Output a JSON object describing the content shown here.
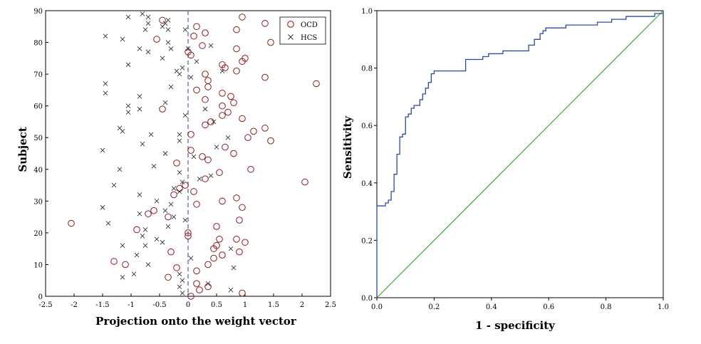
{
  "chart_data": [
    {
      "type": "scatter",
      "xlabel": "Projection onto the weight vector",
      "ylabel": "Subject",
      "xlim": [
        -2.5,
        2.5
      ],
      "ylim": [
        0,
        90
      ],
      "xticks": [
        "-2.5",
        "-2",
        "-1.5",
        "-1",
        "-0.5",
        "0",
        "0.5",
        "1",
        "1.5",
        "2",
        "2.5"
      ],
      "yticks": [
        "0",
        "10",
        "20",
        "30",
        "40",
        "50",
        "60",
        "70",
        "80",
        "90"
      ],
      "decision_boundary_x": 0,
      "series": [
        {
          "name": "OCD",
          "marker": "circle",
          "color": "#8b1a1a",
          "points": [
            [
              0.05,
              0
            ],
            [
              0.95,
              1
            ],
            [
              0.2,
              2
            ],
            [
              0.35,
              3
            ],
            [
              0.15,
              4
            ],
            [
              -0.35,
              6
            ],
            [
              0.15,
              8
            ],
            [
              -0.2,
              9
            ],
            [
              0.35,
              10
            ],
            [
              0.5,
              16
            ],
            [
              -1.1,
              10
            ],
            [
              0.45,
              12
            ],
            [
              -1.3,
              11
            ],
            [
              0.6,
              13
            ],
            [
              -0.3,
              14
            ],
            [
              0.9,
              14
            ],
            [
              0.45,
              15
            ],
            [
              1.0,
              17
            ],
            [
              0.55,
              18
            ],
            [
              0.85,
              18
            ],
            [
              0.0,
              19
            ],
            [
              0.0,
              20
            ],
            [
              -0.9,
              21
            ],
            [
              0.5,
              22
            ],
            [
              -2.05,
              23
            ],
            [
              0.9,
              24
            ],
            [
              -0.35,
              25
            ],
            [
              -0.7,
              26
            ],
            [
              -0.6,
              27
            ],
            [
              0.95,
              28
            ],
            [
              0.15,
              29
            ],
            [
              0.6,
              30
            ],
            [
              0.85,
              31
            ],
            [
              -0.25,
              32
            ],
            [
              0.1,
              33
            ],
            [
              -0.15,
              34
            ],
            [
              -0.05,
              35
            ],
            [
              2.05,
              36
            ],
            [
              0.3,
              37
            ],
            [
              0.55,
              39
            ],
            [
              1.1,
              40
            ],
            [
              0.35,
              43
            ],
            [
              0.25,
              44
            ],
            [
              0.8,
              45
            ],
            [
              0.05,
              46
            ],
            [
              0.65,
              47
            ],
            [
              -0.2,
              42
            ],
            [
              1.45,
              49
            ],
            [
              1.05,
              50
            ],
            [
              0.05,
              51
            ],
            [
              1.15,
              52
            ],
            [
              1.35,
              53
            ],
            [
              0.3,
              54
            ],
            [
              0.4,
              55
            ],
            [
              0.95,
              56
            ],
            [
              0.6,
              57
            ],
            [
              0.7,
              58
            ],
            [
              -0.45,
              59
            ],
            [
              0.6,
              60
            ],
            [
              0.8,
              61
            ],
            [
              0.3,
              62
            ],
            [
              0.75,
              63
            ],
            [
              0.6,
              64
            ],
            [
              0.15,
              65
            ],
            [
              0.35,
              66
            ],
            [
              2.25,
              67
            ],
            [
              0.35,
              68
            ],
            [
              1.35,
              69
            ],
            [
              0.3,
              70
            ],
            [
              0.85,
              71
            ],
            [
              0.65,
              72
            ],
            [
              0.6,
              73
            ],
            [
              0.95,
              74
            ],
            [
              1.0,
              75
            ],
            [
              0.05,
              76
            ],
            [
              0.0,
              77
            ],
            [
              0.85,
              78
            ],
            [
              0.25,
              79
            ],
            [
              1.45,
              80
            ],
            [
              -0.55,
              81
            ],
            [
              0.1,
              82
            ],
            [
              0.3,
              83
            ],
            [
              0.85,
              84
            ],
            [
              0.15,
              85
            ],
            [
              1.35,
              86
            ],
            [
              -0.45,
              87
            ],
            [
              0.95,
              88
            ]
          ]
        },
        {
          "name": "HCS",
          "marker": "x",
          "color": "#333333",
          "points": [
            [
              -0.1,
              1
            ],
            [
              -0.15,
              3
            ],
            [
              -0.1,
              5
            ],
            [
              -0.15,
              7
            ],
            [
              0.75,
              2
            ],
            [
              0.35,
              4
            ],
            [
              -1.15,
              6
            ],
            [
              -0.95,
              7
            ],
            [
              0.05,
              12
            ],
            [
              -0.7,
              10
            ],
            [
              0.8,
              9
            ],
            [
              -0.9,
              13
            ],
            [
              -1.15,
              16
            ],
            [
              -0.75,
              16
            ],
            [
              -0.45,
              17
            ],
            [
              0.75,
              15
            ],
            [
              -0.55,
              18
            ],
            [
              -0.8,
              19
            ],
            [
              -0.75,
              21
            ],
            [
              -0.35,
              22
            ],
            [
              -1.4,
              23
            ],
            [
              -0.05,
              24
            ],
            [
              -0.25,
              25
            ],
            [
              -0.85,
              26
            ],
            [
              -0.4,
              27
            ],
            [
              -1.5,
              28
            ],
            [
              -0.3,
              29
            ],
            [
              -0.55,
              30
            ],
            [
              -0.85,
              32
            ],
            [
              -0.15,
              33
            ],
            [
              -0.25,
              34
            ],
            [
              -1.3,
              35
            ],
            [
              -0.1,
              36
            ],
            [
              0.2,
              37
            ],
            [
              0.4,
              38
            ],
            [
              -0.15,
              39
            ],
            [
              -1.2,
              40
            ],
            [
              -0.6,
              41
            ],
            [
              0.1,
              44
            ],
            [
              0.5,
              47
            ],
            [
              -0.4,
              45
            ],
            [
              -0.8,
              48
            ],
            [
              -1.5,
              46
            ],
            [
              -0.15,
              49
            ],
            [
              0.7,
              50
            ],
            [
              -0.15,
              51
            ],
            [
              -0.65,
              51
            ],
            [
              -1.15,
              52
            ],
            [
              -1.2,
              53
            ],
            [
              0.45,
              55
            ],
            [
              -0.05,
              57
            ],
            [
              0.3,
              59
            ],
            [
              -0.85,
              59
            ],
            [
              -1.05,
              60
            ],
            [
              -1.05,
              58
            ],
            [
              -0.4,
              61
            ],
            [
              -0.85,
              63
            ],
            [
              -1.45,
              64
            ],
            [
              -1.45,
              67
            ],
            [
              -0.3,
              66
            ],
            [
              0.05,
              69
            ],
            [
              -0.2,
              71
            ],
            [
              -0.1,
              72
            ],
            [
              -0.15,
              70
            ],
            [
              0.6,
              71
            ],
            [
              0.15,
              74
            ],
            [
              -1.05,
              73
            ],
            [
              -0.45,
              75
            ],
            [
              -0.7,
              77
            ],
            [
              -0.85,
              78
            ],
            [
              -0.3,
              78
            ],
            [
              0.4,
              79
            ],
            [
              -1.45,
              82
            ],
            [
              -1.15,
              81
            ],
            [
              -0.35,
              80
            ],
            [
              -0.75,
              84
            ],
            [
              -0.35,
              84
            ],
            [
              -0.05,
              84
            ],
            [
              -0.45,
              85
            ],
            [
              -0.7,
              86
            ],
            [
              -0.7,
              88
            ],
            [
              -0.4,
              86
            ],
            [
              -0.8,
              89
            ],
            [
              -1.05,
              88
            ],
            [
              -0.35,
              87
            ],
            [
              0.0,
              78
            ]
          ]
        }
      ],
      "legend": {
        "position": "top-right",
        "entries": [
          "OCD",
          "HCS"
        ]
      }
    },
    {
      "type": "line",
      "title": "",
      "xlabel": "1 - specificity",
      "ylabel": "Sensitivity",
      "xlim": [
        0,
        1
      ],
      "ylim": [
        0,
        1
      ],
      "xticks": [
        "0.0",
        "0.2",
        "0.4",
        "0.6",
        "0.8",
        "1.0"
      ],
      "yticks": [
        "0.0",
        "0.2",
        "0.4",
        "0.6",
        "0.8",
        "1.0"
      ],
      "series": [
        {
          "name": "ROC curve",
          "color": "#2e4a9e",
          "step": true,
          "x": [
            0.0,
            0.0,
            0.03,
            0.04,
            0.05,
            0.06,
            0.07,
            0.08,
            0.09,
            0.1,
            0.11,
            0.12,
            0.13,
            0.15,
            0.16,
            0.17,
            0.18,
            0.19,
            0.2,
            0.22,
            0.31,
            0.36,
            0.37,
            0.38,
            0.39,
            0.43,
            0.44,
            0.47,
            0.53,
            0.55,
            0.57,
            0.58,
            0.59,
            0.6,
            0.65,
            0.66,
            0.75,
            0.77,
            0.82,
            0.84,
            0.87,
            0.92,
            0.97,
            0.99,
            1.0
          ],
          "y": [
            0.0,
            0.32,
            0.33,
            0.34,
            0.37,
            0.43,
            0.5,
            0.56,
            0.57,
            0.63,
            0.64,
            0.66,
            0.67,
            0.69,
            0.71,
            0.73,
            0.75,
            0.78,
            0.79,
            0.79,
            0.83,
            0.83,
            0.84,
            0.84,
            0.85,
            0.85,
            0.86,
            0.86,
            0.88,
            0.9,
            0.92,
            0.93,
            0.94,
            0.94,
            0.94,
            0.95,
            0.95,
            0.96,
            0.97,
            0.97,
            0.98,
            0.98,
            0.99,
            0.99,
            1.0
          ]
        },
        {
          "name": "Reference line",
          "color": "#3aaa35",
          "x": [
            0,
            1
          ],
          "y": [
            0,
            1
          ]
        }
      ]
    }
  ]
}
